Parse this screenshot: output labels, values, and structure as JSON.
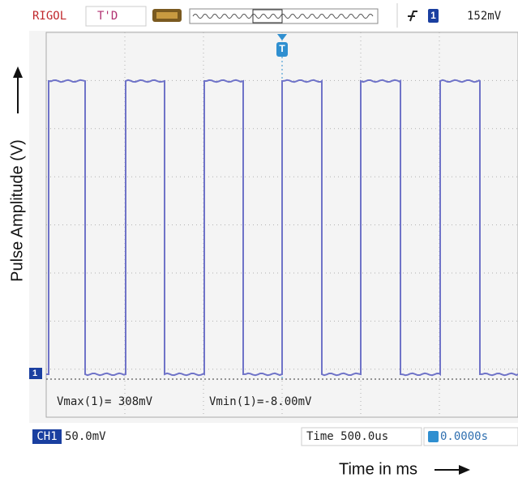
{
  "header": {
    "brand": "RIGOL",
    "status": "T'D",
    "trigger_channel": "1",
    "trigger_level": "152mV"
  },
  "marker": {
    "trigger": "T",
    "channel": "1"
  },
  "measurements": {
    "vmax": "Vmax(1)= 308mV",
    "vmin": "Vmin(1)=-8.00mV"
  },
  "footer": {
    "channel": "CH1",
    "scale": "50.0mV",
    "timebase": "Time 500.0us",
    "offset": "0.0000s"
  },
  "axes": {
    "y_label": "Pulse Amplitude (V)",
    "x_label": "Time in ms"
  }
}
